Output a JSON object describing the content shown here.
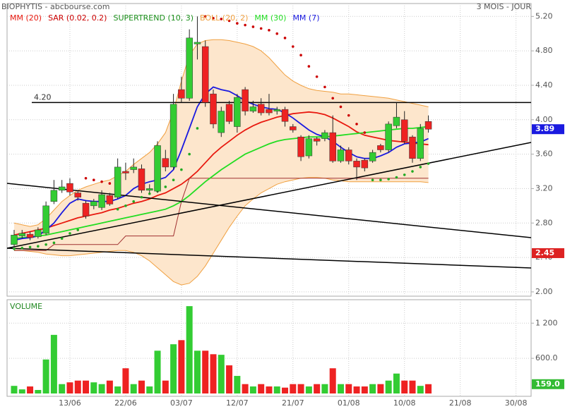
{
  "chart_data": {
    "type": "candlestick",
    "title": "BIOPHYTIS - abcbourse.com",
    "subtitle": "3 MOIS - JOUR",
    "categories": [
      null,
      null,
      null,
      null,
      null,
      null,
      null,
      "13/06",
      null,
      null,
      null,
      null,
      null,
      null,
      "22/06",
      null,
      null,
      null,
      null,
      null,
      null,
      "03/07",
      null,
      null,
      null,
      null,
      null,
      null,
      "12/07",
      null,
      null,
      null,
      null,
      null,
      null,
      "21/07",
      null,
      null,
      null,
      null,
      null,
      null,
      "01/08",
      null,
      null,
      null,
      null,
      null,
      null,
      "10/08",
      null,
      null,
      null,
      null,
      null,
      null,
      "21/08",
      null,
      null,
      null,
      null,
      null,
      null,
      "30/08"
    ],
    "open": [
      2.55,
      2.65,
      2.67,
      2.64,
      2.68,
      3.05,
      3.18,
      3.26,
      3.15,
      3.03,
      3.0,
      2.98,
      3.12,
      3.1,
      3.4,
      3.42,
      3.43,
      3.18,
      3.17,
      3.55,
      3.45,
      4.35,
      4.25,
      4.88,
      4.85,
      4.3,
      3.85,
      4.18,
      3.92,
      4.35,
      4.1,
      4.18,
      4.12,
      4.1,
      4.12,
      3.92,
      3.8,
      3.58,
      3.78,
      3.78,
      3.85,
      3.52,
      3.65,
      3.52,
      3.53,
      3.52,
      3.7,
      3.65,
      3.93,
      4.0,
      3.8,
      3.55,
      3.98,
      null,
      null,
      null,
      null,
      null,
      null,
      null,
      null,
      null,
      null,
      null
    ],
    "high": [
      2.72,
      2.72,
      2.7,
      2.75,
      3.05,
      3.3,
      3.3,
      3.32,
      3.18,
      3.06,
      3.08,
      3.18,
      3.15,
      3.55,
      3.5,
      3.55,
      3.48,
      3.25,
      3.75,
      3.65,
      4.3,
      4.5,
      5.05,
      5.2,
      4.92,
      4.35,
      4.15,
      4.22,
      4.3,
      4.38,
      4.22,
      4.25,
      4.3,
      4.15,
      4.15,
      3.95,
      3.82,
      3.82,
      3.8,
      3.88,
      4.05,
      3.7,
      3.68,
      3.55,
      3.55,
      3.65,
      3.72,
      3.98,
      4.2,
      4.1,
      3.82,
      3.95,
      4.05,
      null,
      null,
      null,
      null,
      null,
      null,
      null,
      null,
      null,
      null,
      null
    ],
    "low": [
      2.52,
      2.62,
      2.6,
      2.62,
      2.66,
      3.02,
      3.15,
      3.12,
      3.06,
      2.85,
      2.96,
      2.95,
      3.0,
      3.08,
      3.3,
      3.38,
      3.15,
      3.15,
      3.15,
      3.4,
      3.42,
      4.2,
      4.22,
      4.7,
      4.15,
      3.9,
      3.8,
      3.95,
      3.85,
      4.05,
      4.08,
      4.05,
      4.05,
      4.06,
      3.92,
      3.85,
      3.52,
      3.55,
      3.7,
      3.75,
      3.5,
      3.5,
      3.48,
      3.3,
      3.4,
      3.5,
      3.62,
      3.62,
      3.9,
      3.72,
      3.5,
      3.52,
      3.85,
      null,
      null,
      null,
      null,
      null,
      null,
      null,
      null,
      null,
      null,
      null
    ],
    "close": [
      2.66,
      2.68,
      2.63,
      2.72,
      3.0,
      3.18,
      3.22,
      3.16,
      3.1,
      2.88,
      3.05,
      3.13,
      3.02,
      3.45,
      3.38,
      3.45,
      3.18,
      3.2,
      3.7,
      3.45,
      4.18,
      4.25,
      4.95,
      4.9,
      4.2,
      3.95,
      4.1,
      3.98,
      4.26,
      4.1,
      4.15,
      4.08,
      4.08,
      4.12,
      3.98,
      3.88,
      3.57,
      3.78,
      3.75,
      3.85,
      3.52,
      3.65,
      3.52,
      3.45,
      3.44,
      3.62,
      3.65,
      3.95,
      4.03,
      3.75,
      3.55,
      3.9,
      3.89,
      null,
      null,
      null,
      null,
      null,
      null,
      null,
      null,
      null,
      null,
      null
    ],
    "up_color": "#33cc33",
    "down_color": "#ee2222",
    "series": [
      {
        "name": "MM (20)",
        "style": "line",
        "color": "#e8190f",
        "values": [
          2.66,
          2.68,
          2.7,
          2.72,
          2.74,
          2.77,
          2.8,
          2.83,
          2.86,
          2.88,
          2.9,
          2.92,
          2.95,
          2.97,
          3.0,
          3.03,
          3.05,
          3.08,
          3.12,
          3.15,
          3.2,
          3.25,
          3.32,
          3.4,
          3.5,
          3.6,
          3.68,
          3.75,
          3.82,
          3.88,
          3.93,
          3.97,
          4.0,
          4.03,
          4.05,
          4.07,
          4.08,
          4.09,
          4.08,
          4.06,
          4.02,
          3.97,
          3.92,
          3.86,
          3.82,
          3.8,
          3.78,
          3.76,
          3.75,
          3.74,
          3.73,
          3.72,
          3.71,
          null,
          null,
          null,
          null,
          null,
          null,
          null,
          null,
          null,
          null,
          null
        ]
      },
      {
        "name": "SAR (0.02, 0.2)",
        "style": "dots",
        "color": "#cc0000",
        "below_color": "#22aa22",
        "values": [
          2.5,
          2.51,
          2.52,
          2.53,
          2.55,
          2.57,
          2.62,
          2.68,
          2.72,
          3.32,
          3.3,
          3.28,
          3.26,
          2.96,
          3.0,
          3.05,
          3.1,
          3.14,
          3.17,
          3.22,
          3.3,
          3.42,
          3.6,
          3.9,
          5.2,
          5.18,
          5.17,
          5.15,
          5.12,
          5.1,
          5.08,
          5.06,
          5.04,
          5.0,
          4.95,
          4.85,
          4.75,
          4.62,
          4.5,
          4.38,
          4.25,
          4.15,
          4.05,
          3.95,
          3.85,
          3.3,
          3.3,
          3.31,
          3.33,
          3.36,
          3.4,
          3.45,
          3.49,
          null,
          null,
          null,
          null,
          null,
          null,
          null,
          null,
          null,
          null,
          null
        ]
      },
      {
        "name": "SUPERTREND (10, 3)",
        "style": "line",
        "color": "#1b8f1b",
        "line_color": "#a03030",
        "values": [
          2.48,
          2.48,
          2.48,
          2.48,
          2.48,
          2.55,
          2.55,
          2.55,
          2.55,
          2.55,
          2.55,
          2.55,
          2.55,
          2.55,
          2.65,
          2.65,
          2.65,
          2.65,
          2.65,
          2.65,
          2.65,
          3.05,
          3.32,
          3.32,
          3.32,
          3.32,
          3.32,
          3.32,
          3.32,
          3.32,
          3.32,
          3.32,
          3.32,
          3.32,
          3.32,
          3.32,
          3.32,
          3.32,
          3.32,
          3.32,
          3.32,
          3.32,
          3.32,
          3.32,
          3.32,
          3.32,
          3.32,
          3.32,
          3.32,
          3.32,
          3.32,
          3.32,
          3.32,
          null,
          null,
          null,
          null,
          null,
          null,
          null,
          null,
          null,
          null,
          null
        ]
      },
      {
        "name": "BOLL (20, 2)",
        "style": "band",
        "color": "#f0a040",
        "fill": "#fde6cc",
        "upper": [
          2.8,
          2.78,
          2.76,
          2.78,
          2.85,
          2.95,
          3.05,
          3.12,
          3.18,
          3.22,
          3.25,
          3.28,
          3.3,
          3.35,
          3.4,
          3.48,
          3.55,
          3.62,
          3.72,
          3.85,
          4.1,
          4.45,
          4.75,
          4.88,
          4.92,
          4.93,
          4.93,
          4.92,
          4.9,
          4.88,
          4.85,
          4.8,
          4.72,
          4.62,
          4.52,
          4.45,
          4.4,
          4.36,
          4.34,
          4.33,
          4.32,
          4.3,
          4.3,
          4.29,
          4.28,
          4.27,
          4.26,
          4.25,
          4.23,
          4.21,
          4.19,
          4.17,
          4.15,
          null,
          null,
          null,
          null,
          null,
          null,
          null,
          null,
          null,
          null,
          null
        ],
        "lower": [
          2.48,
          2.48,
          2.47,
          2.46,
          2.44,
          2.43,
          2.42,
          2.42,
          2.43,
          2.44,
          2.45,
          2.46,
          2.47,
          2.48,
          2.48,
          2.46,
          2.42,
          2.36,
          2.28,
          2.2,
          2.12,
          2.08,
          2.1,
          2.18,
          2.3,
          2.45,
          2.6,
          2.75,
          2.88,
          3.0,
          3.08,
          3.15,
          3.2,
          3.25,
          3.28,
          3.3,
          3.32,
          3.33,
          3.33,
          3.32,
          3.3,
          3.29,
          3.28,
          3.28,
          3.28,
          3.28,
          3.28,
          3.28,
          3.28,
          3.28,
          3.28,
          3.28,
          3.27,
          null,
          null,
          null,
          null,
          null,
          null,
          null,
          null,
          null,
          null,
          null
        ]
      },
      {
        "name": "MM (30)",
        "style": "line",
        "color": "#22dd22",
        "values": [
          2.62,
          2.63,
          2.64,
          2.65,
          2.66,
          2.68,
          2.7,
          2.72,
          2.74,
          2.76,
          2.78,
          2.8,
          2.82,
          2.84,
          2.86,
          2.88,
          2.9,
          2.92,
          2.94,
          2.96,
          3.0,
          3.05,
          3.12,
          3.2,
          3.28,
          3.35,
          3.42,
          3.48,
          3.54,
          3.6,
          3.64,
          3.68,
          3.72,
          3.75,
          3.77,
          3.78,
          3.79,
          3.8,
          3.8,
          3.8,
          3.81,
          3.82,
          3.83,
          3.84,
          3.85,
          3.86,
          3.87,
          3.88,
          3.89,
          3.9,
          3.9,
          3.91,
          3.92,
          null,
          null,
          null,
          null,
          null,
          null,
          null,
          null,
          null,
          null,
          null
        ]
      },
      {
        "name": "MM (7)",
        "style": "line",
        "color": "#1a1ae0",
        "values": [
          2.6,
          2.62,
          2.63,
          2.65,
          2.72,
          2.8,
          2.92,
          3.03,
          3.08,
          3.06,
          3.05,
          3.05,
          3.05,
          3.08,
          3.12,
          3.2,
          3.25,
          3.28,
          3.3,
          3.33,
          3.42,
          3.65,
          3.9,
          4.15,
          4.3,
          4.38,
          4.35,
          4.33,
          4.28,
          4.22,
          4.18,
          4.15,
          4.13,
          4.12,
          4.08,
          4.02,
          3.95,
          3.88,
          3.83,
          3.8,
          3.75,
          3.68,
          3.62,
          3.57,
          3.55,
          3.55,
          3.58,
          3.62,
          3.68,
          3.72,
          3.73,
          3.74,
          3.78,
          null,
          null,
          null,
          null,
          null,
          null,
          null,
          null,
          null,
          null,
          null
        ]
      }
    ],
    "ylim": [
      1.95,
      5.35
    ],
    "yticks": [
      {
        "value": 2,
        "label": "2.00"
      },
      {
        "value": 2.4,
        "label": "2.40"
      },
      {
        "value": 2.8,
        "label": "2.80"
      },
      {
        "value": 3.2,
        "label": "3.20"
      },
      {
        "value": 3.6,
        "label": "3.60"
      },
      {
        "value": 4,
        "label": "4.00"
      },
      {
        "value": 4.4,
        "label": "4.40"
      },
      {
        "value": 4.8,
        "label": "4.80"
      },
      {
        "value": 5.2,
        "label": "5.20"
      }
    ],
    "grid": true,
    "hline": {
      "value": 4.2,
      "label": "4.20"
    },
    "price_markers": [
      {
        "value": 3.89,
        "color": "#1a1ae0"
      },
      {
        "value": 2.45,
        "color": "#dd2222"
      }
    ],
    "volume": {
      "label": "VOLUME",
      "color": "#228822",
      "values": [
        130,
        70,
        120,
        60,
        580,
        1000,
        160,
        190,
        220,
        220,
        190,
        160,
        220,
        120,
        430,
        160,
        220,
        120,
        730,
        220,
        840,
        910,
        1490,
        730,
        730,
        670,
        660,
        480,
        300,
        160,
        120,
        160,
        120,
        120,
        100,
        160,
        160,
        120,
        160,
        160,
        430,
        160,
        160,
        120,
        120,
        160,
        160,
        220,
        340,
        220,
        220,
        130,
        159,
        null,
        null,
        null,
        null,
        null,
        null,
        null,
        null,
        null,
        null,
        null
      ],
      "ylim": [
        0,
        1600
      ],
      "yticks": [
        {
          "value": 600,
          "label": "600.0"
        },
        {
          "value": 1200,
          "label": "1 200"
        }
      ],
      "marker": {
        "value": 159,
        "label": "159.0",
        "color": "#33bb33"
      }
    }
  }
}
